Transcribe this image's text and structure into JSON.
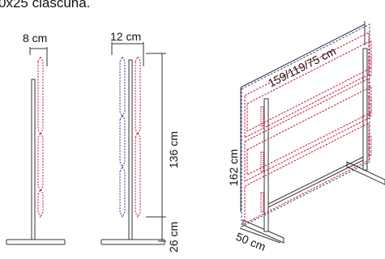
{
  "caption": "0x25 ciascuna.",
  "dimensions": {
    "spacing_single": "8 cm",
    "spacing_double": "12 cm",
    "height_upper": "136 cm",
    "height_lower": "26 cm",
    "width_options": "159/119/75 cm",
    "panel_height": "162 cm",
    "depth": "50 cm"
  },
  "colors": {
    "pole": "#333333",
    "red_dash": "#c8102e",
    "blue_dash": "#2b3a8f",
    "text": "#111111"
  }
}
